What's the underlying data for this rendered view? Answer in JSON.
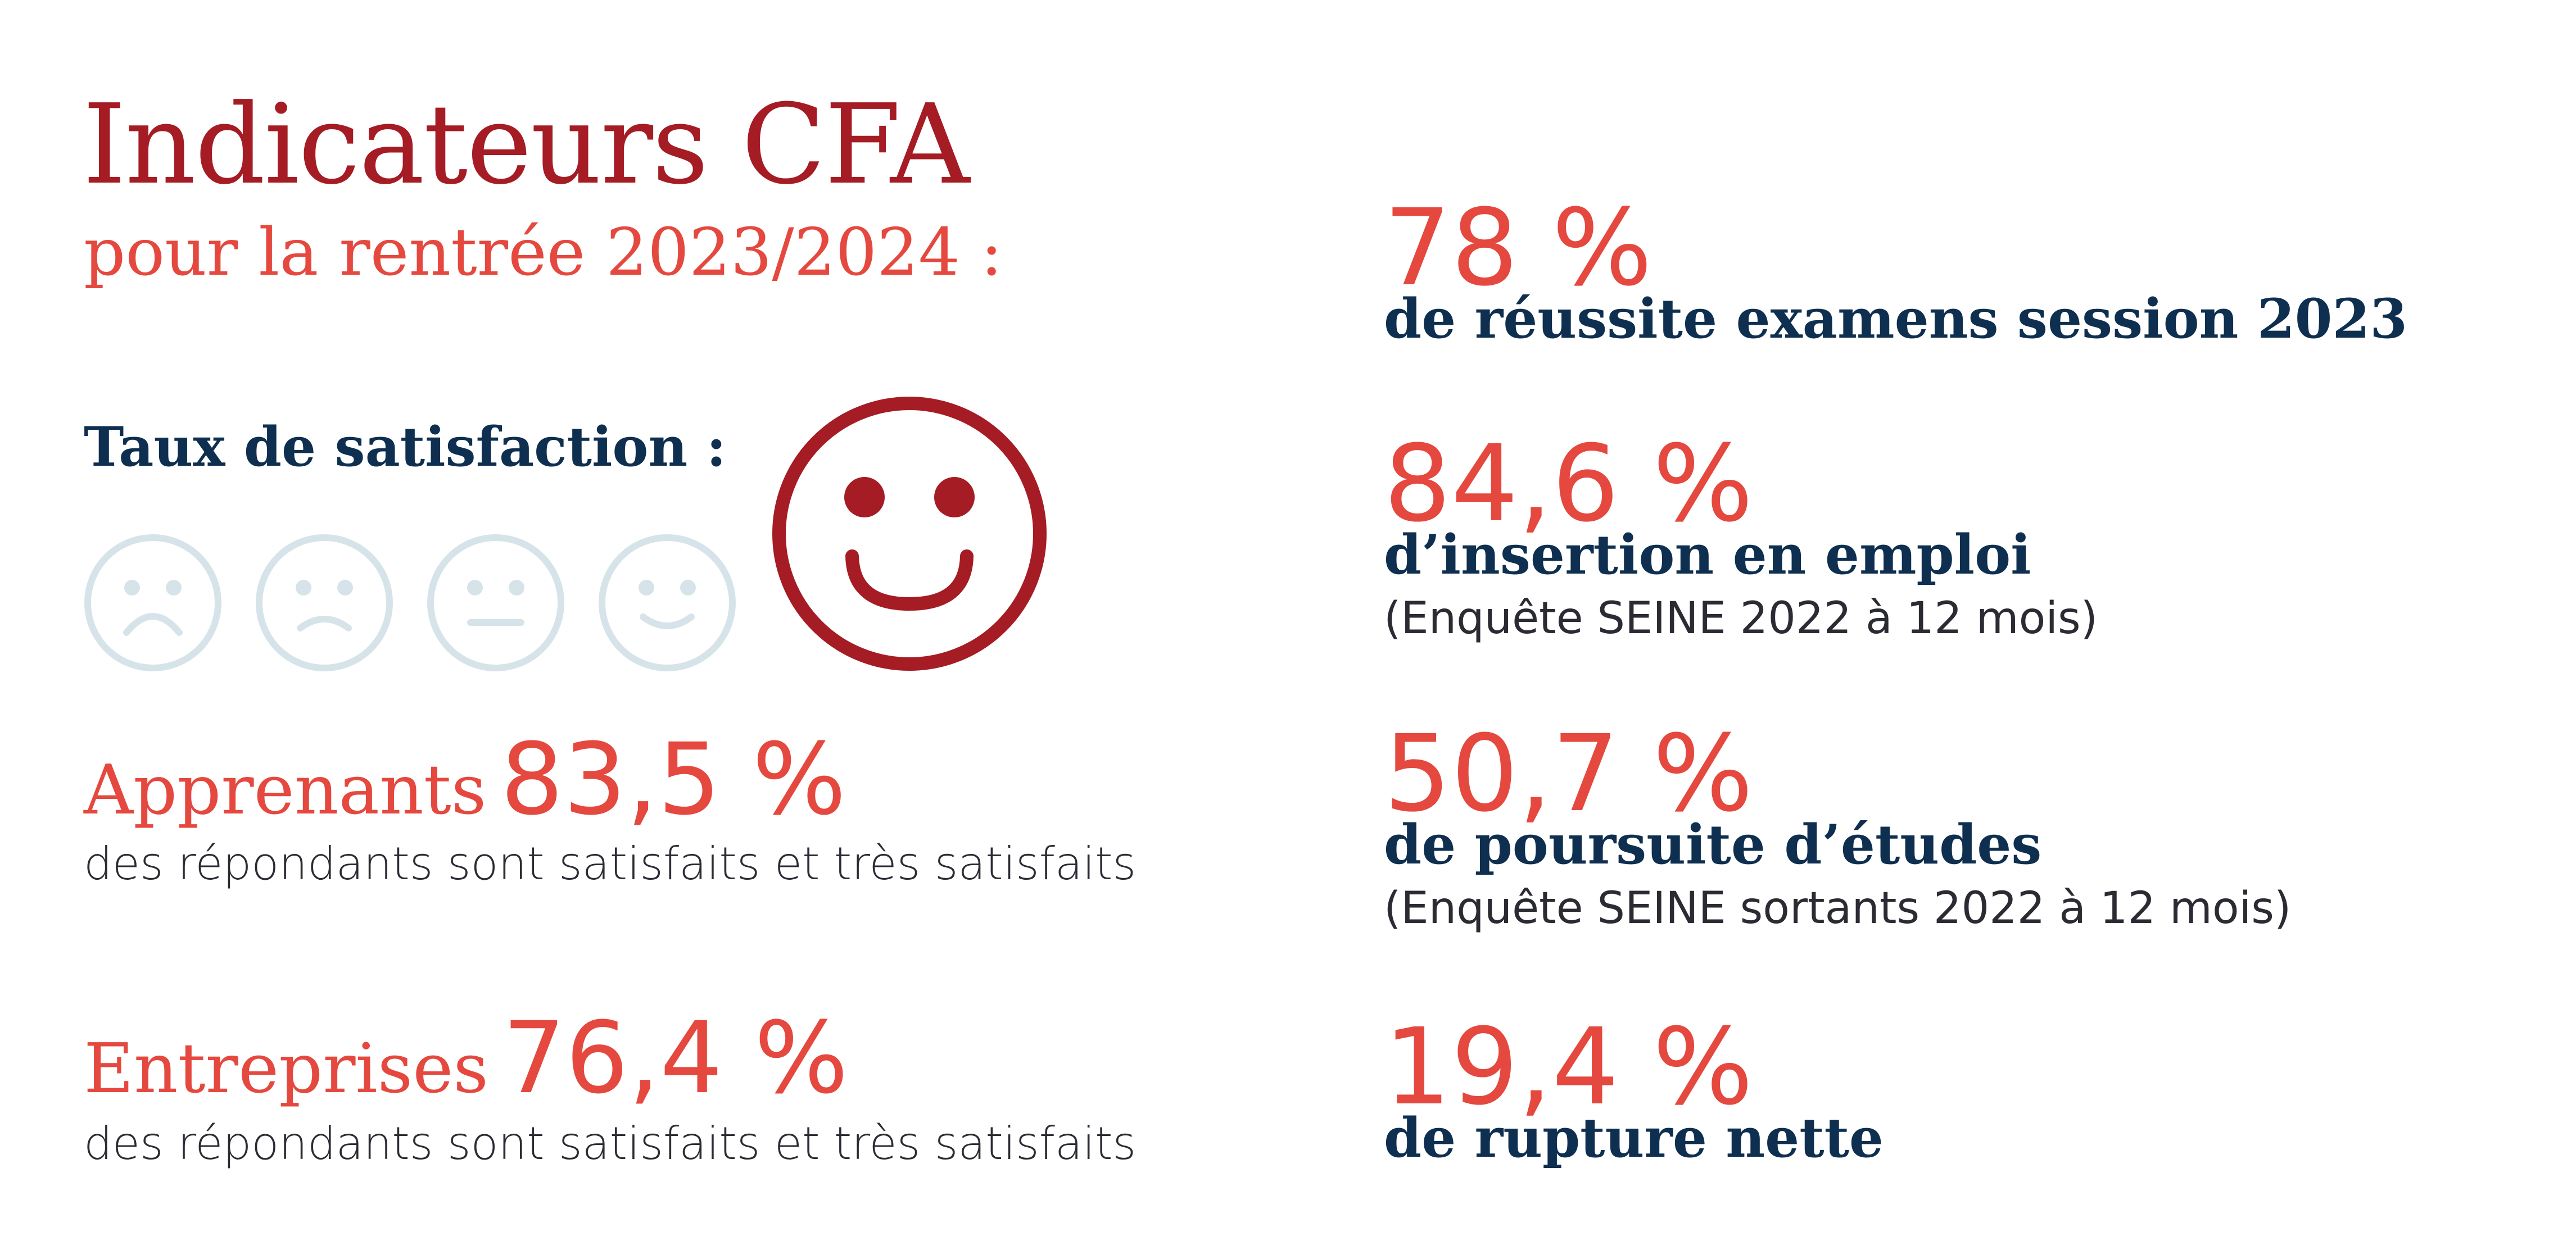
{
  "header": {
    "title": "Indicateurs CFA",
    "subtitle": "pour la rentrée 2023/2024 :"
  },
  "satisfaction": {
    "label": "Taux de satisfaction :",
    "scale_icons": [
      "very-sad-face-icon",
      "sad-face-icon",
      "neutral-face-icon",
      "slight-smile-face-icon",
      "happy-face-icon"
    ],
    "selected_level": 5,
    "level_count": 5
  },
  "left_metrics": [
    {
      "label": "Apprenants",
      "value": "83,5 %",
      "description": "des répondants sont satisfaits et très satisfaits"
    },
    {
      "label": "Entreprises",
      "value": "76,4 %",
      "description": "des répondants sont satisfaits et très satisfaits"
    }
  ],
  "right_metrics": [
    {
      "value": "78 %",
      "caption": "de réussite examens session 2023",
      "note": ""
    },
    {
      "value": "84,6 %",
      "caption": "d’insertion en emploi",
      "note": "(Enquête SEINE 2022 à 12 mois)"
    },
    {
      "value": "50,7 %",
      "caption": "de poursuite d’études",
      "note": "(Enquête SEINE sortants 2022 à 12 mois)"
    },
    {
      "value": "19,4 %",
      "caption": "de rupture nette",
      "note": ""
    }
  ],
  "colors": {
    "title": "#a51c24",
    "accent": "#e5483e",
    "navy": "#0e2f4f",
    "inactive_face": "#d6e4ea",
    "active_face": "#a51c24"
  }
}
